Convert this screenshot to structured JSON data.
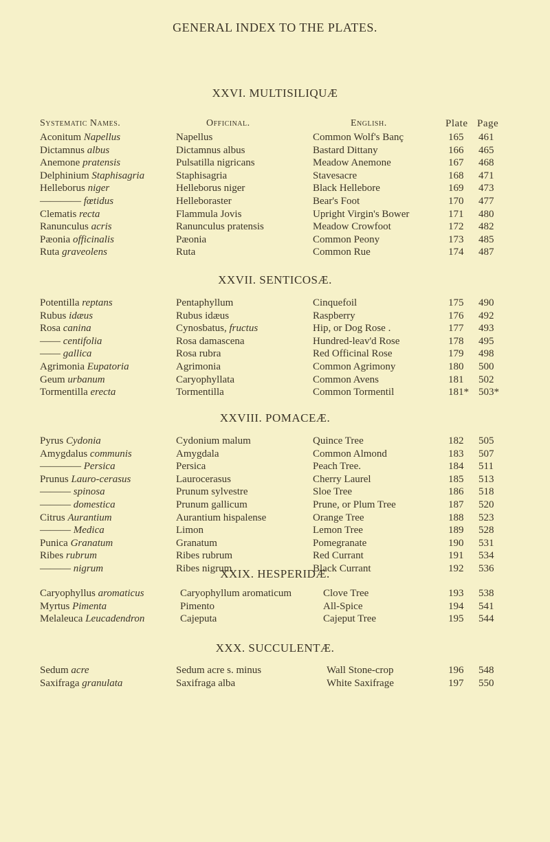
{
  "page_title": "GENERAL INDEX TO THE PLATES.",
  "headers": {
    "systematic": "Systematic Names.",
    "officinal": "Officinal.",
    "english": "English.",
    "plate": "Plate",
    "page": "Page"
  },
  "sections": [
    {
      "title": "XXVI. MULTISILIQUÆ",
      "rows": [
        {
          "sys": [
            "Aconitum ",
            "Napellus"
          ],
          "off": [
            "Napellus",
            ""
          ],
          "eng": "Common Wolf's Banç",
          "plate": "165",
          "page": "461"
        },
        {
          "sys": [
            "Dictamnus ",
            "albus"
          ],
          "off": [
            "Dictamnus albus",
            ""
          ],
          "eng": "Bastard Dittany",
          "plate": "166",
          "page": "465"
        },
        {
          "sys": [
            "Anemone ",
            "pratensis"
          ],
          "off": [
            "Pulsatilla nigricans",
            ""
          ],
          "eng": "Meadow Anemone",
          "plate": "167",
          "page": "468"
        },
        {
          "sys": [
            "Delphinium ",
            "Staphisagria"
          ],
          "off": [
            "Staphisagria",
            ""
          ],
          "eng": "Stavesacre",
          "plate": "168",
          "page": "471"
        },
        {
          "sys": [
            "Helleborus ",
            "niger"
          ],
          "off": [
            "Helleborus niger",
            ""
          ],
          "eng": "Black Hellebore",
          "plate": "169",
          "page": "473"
        },
        {
          "sys": [
            "———— ",
            "fœtidus"
          ],
          "off": [
            "Helleboraster",
            ""
          ],
          "eng": "Bear's Foot",
          "plate": "170",
          "page": "477"
        },
        {
          "sys": [
            "Clematis ",
            "recta"
          ],
          "off": [
            "Flammula Jovis",
            ""
          ],
          "eng": "Upright Virgin's Bower",
          "plate": "171",
          "page": "480"
        },
        {
          "sys": [
            "Ranunculus ",
            "acris"
          ],
          "off": [
            "Ranunculus pratensis",
            ""
          ],
          "eng": "Meadow Crowfoot",
          "plate": "172",
          "page": "482"
        },
        {
          "sys": [
            "Pæonia ",
            "officinalis"
          ],
          "off": [
            "Pæonia",
            ""
          ],
          "eng": "Common Peony",
          "plate": "173",
          "page": "485"
        },
        {
          "sys": [
            "Ruta ",
            "graveolens"
          ],
          "off": [
            "Ruta",
            ""
          ],
          "eng": "Common Rue",
          "plate": "174",
          "page": "487"
        }
      ]
    },
    {
      "title": "XXVII. SENTICOSÆ.",
      "rows": [
        {
          "sys": [
            "Potentilla ",
            "reptans"
          ],
          "off": [
            "Pentaphyllum",
            ""
          ],
          "eng": "Cinquefoil",
          "plate": "175",
          "page": "490"
        },
        {
          "sys": [
            "Rubus ",
            "idæus"
          ],
          "off": [
            "Rubus idæus",
            ""
          ],
          "eng": "Raspberry",
          "plate": "176",
          "page": "492"
        },
        {
          "sys": [
            "Rosa ",
            "canina"
          ],
          "off": [
            "Cynosbatus, ",
            "fructus"
          ],
          "eng": "Hip, or Dog Rose .",
          "plate": "177",
          "page": "493"
        },
        {
          "sys": [
            "—— ",
            "centifolia"
          ],
          "off": [
            "Rosa damascena",
            ""
          ],
          "eng": "Hundred-leav'd Rose",
          "plate": "178",
          "page": "495"
        },
        {
          "sys": [
            "—— ",
            "gallica"
          ],
          "off": [
            "Rosa rubra",
            ""
          ],
          "eng": "Red Officinal Rose",
          "plate": "179",
          "page": "498"
        },
        {
          "sys": [
            "Agrimonia ",
            "Eupatoria"
          ],
          "off": [
            "Agrimonia",
            ""
          ],
          "eng": "Common Agrimony",
          "plate": "180",
          "page": "500"
        },
        {
          "sys": [
            "Geum ",
            "urbanum"
          ],
          "off": [
            "Caryophyllata",
            ""
          ],
          "eng": "Common Avens",
          "plate": "181",
          "page": "502"
        },
        {
          "sys": [
            "Tormentilla ",
            "erecta"
          ],
          "off": [
            "Tormentilla",
            ""
          ],
          "eng": "Common Tormentil",
          "plate": "181*",
          "page": "503*"
        }
      ]
    },
    {
      "title": "XXVIII. POMACEÆ.",
      "rows": [
        {
          "sys": [
            "Pyrus ",
            "Cydonia"
          ],
          "off": [
            "Cydonium malum",
            ""
          ],
          "eng": "Quince Tree",
          "plate": "182",
          "page": "505"
        },
        {
          "sys": [
            "Amygdalus ",
            "communis"
          ],
          "off": [
            "Amygdala",
            ""
          ],
          "eng": "Common Almond",
          "plate": "183",
          "page": "507"
        },
        {
          "sys": [
            "———— ",
            "Persica"
          ],
          "off": [
            "Persica",
            ""
          ],
          "eng": "Peach Tree.",
          "plate": "184",
          "page": "511"
        },
        {
          "sys": [
            "Prunus ",
            "Lauro-cerasus"
          ],
          "off": [
            "Laurocerasus",
            ""
          ],
          "eng": "Cherry Laurel",
          "plate": "185",
          "page": "513"
        },
        {
          "sys": [
            "——— ",
            "spinosa"
          ],
          "off": [
            "Prunum sylvestre",
            ""
          ],
          "eng": "Sloe Tree",
          "plate": "186",
          "page": "518"
        },
        {
          "sys": [
            "——— ",
            "domestica"
          ],
          "off": [
            "Prunum gallicum",
            ""
          ],
          "eng": "Prune, or Plum Tree",
          "plate": "187",
          "page": "520"
        },
        {
          "sys": [
            "Citrus ",
            "Aurantium"
          ],
          "off": [
            "Aurantium hispalense",
            ""
          ],
          "eng": "Orange Tree",
          "plate": "188",
          "page": "523"
        },
        {
          "sys": [
            "——— ",
            "Medica"
          ],
          "off": [
            "Limon",
            ""
          ],
          "eng": "Lemon Tree",
          "plate": "189",
          "page": "528"
        },
        {
          "sys": [
            "Punica ",
            "Granatum"
          ],
          "off": [
            "Granatum",
            ""
          ],
          "eng": "Pomegranate",
          "plate": "190",
          "page": "531"
        },
        {
          "sys": [
            "Ribes ",
            "rubrum"
          ],
          "off": [
            "Ribes rubrum",
            ""
          ],
          "eng": "Red Currant",
          "plate": "191",
          "page": "534"
        },
        {
          "sys": [
            "——— ",
            "nigrum"
          ],
          "off": [
            "Ribes nigrum",
            ""
          ],
          "eng": "Black Currant",
          "plate": "192",
          "page": "536"
        }
      ]
    },
    {
      "title": "XXIX. HESPERIDÆ.",
      "rows": [
        {
          "sys": [
            "Caryophyllus ",
            "aromaticus"
          ],
          "off": [
            "Caryophyllum aromaticum",
            ""
          ],
          "eng": "Clove Tree",
          "plate": "193",
          "page": "538"
        },
        {
          "sys": [
            "Myrtus ",
            "Pimenta"
          ],
          "off": [
            "Pimento",
            ""
          ],
          "eng": "All-Spice",
          "plate": "194",
          "page": "541"
        },
        {
          "sys": [
            "Melaleuca ",
            "Leucadendron"
          ],
          "off": [
            "Cajeputa",
            ""
          ],
          "eng": "Cajeput Tree",
          "plate": "195",
          "page": "544"
        }
      ]
    },
    {
      "title": "XXX. SUCCULENTÆ.",
      "rows": [
        {
          "sys": [
            "Sedum ",
            "acre"
          ],
          "off": [
            "Sedum acre s. minus",
            ""
          ],
          "eng": "Wall Stone-crop",
          "plate": "196",
          "page": "548"
        },
        {
          "sys": [
            "Saxifraga ",
            "granulata"
          ],
          "off": [
            "Saxifraga alba",
            ""
          ],
          "eng": "White Saxifrage",
          "plate": "197",
          "page": "550"
        }
      ]
    }
  ]
}
